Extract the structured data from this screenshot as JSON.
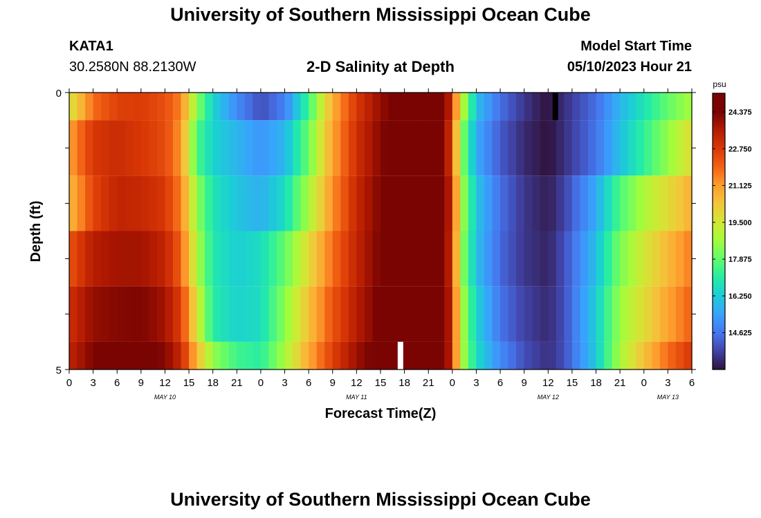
{
  "page": {
    "title_top": "University of Southern Mississippi Ocean Cube",
    "title_bottom": "University of Southern Mississippi Ocean Cube",
    "station_id": "KATA1",
    "coords": "30.2580N  88.2130W",
    "subtitle": "2-D Salinity at Depth",
    "model_start_label": "Model Start Time",
    "model_start_value": "05/10/2023 Hour 21"
  },
  "chart_data": {
    "type": "heatmap",
    "title": "2-D Salinity at Depth",
    "xlabel": "Forecast Time(Z)",
    "ylabel": "Depth (ft)",
    "y_ticks": [
      "0",
      "5"
    ],
    "x_tick_labels": [
      "0",
      "3",
      "6",
      "9",
      "12",
      "15",
      "18",
      "21",
      "0",
      "3",
      "6",
      "9",
      "12",
      "15",
      "18",
      "21",
      "0",
      "3",
      "6",
      "9",
      "12",
      "15",
      "18",
      "21",
      "0",
      "3",
      "6"
    ],
    "date_labels": [
      {
        "text": "MAY 10",
        "hour": 12
      },
      {
        "text": "MAY 11",
        "hour": 36
      },
      {
        "text": "MAY 12",
        "hour": 60
      },
      {
        "text": "MAY 13",
        "hour": 75
      }
    ],
    "xlim_hours": [
      0,
      78
    ],
    "depth_rows": 5,
    "colorbar": {
      "unit": "psu",
      "min": 13.0,
      "max": 25.2,
      "tick_labels": [
        "24.375",
        "22.750",
        "21.125",
        "19.500",
        "17.875",
        "16.250",
        "14.625"
      ],
      "tick_values": [
        24.375,
        22.75,
        21.125,
        19.5,
        17.875,
        16.25,
        14.625
      ]
    },
    "series_keypoints_hours": [
      0,
      3,
      6,
      9,
      12,
      14,
      16,
      18,
      21,
      24,
      27,
      30,
      33,
      36,
      39,
      42,
      45,
      47,
      48,
      49,
      51,
      54,
      57,
      60,
      62,
      66,
      69,
      72,
      75,
      78
    ],
    "salinity_by_row": [
      [
        19.5,
        21.8,
        22.6,
        22.7,
        22.3,
        21.5,
        18.4,
        16.4,
        15.0,
        14.0,
        14.8,
        17.4,
        20.8,
        22.8,
        24.0,
        24.8,
        24.9,
        24.6,
        22.7,
        19.6,
        16.0,
        14.5,
        13.6,
        13.0,
        13.5,
        14.5,
        15.8,
        16.8,
        17.9,
        18.8
      ],
      [
        21.0,
        22.8,
        23.1,
        22.8,
        22.4,
        21.2,
        17.6,
        16.4,
        15.8,
        15.2,
        15.8,
        18.0,
        21.0,
        23.0,
        24.2,
        24.8,
        24.9,
        24.5,
        22.2,
        18.7,
        15.6,
        14.2,
        13.4,
        13.0,
        13.5,
        14.6,
        16.0,
        17.2,
        18.5,
        19.8
      ],
      [
        20.5,
        22.5,
        23.3,
        23.2,
        22.8,
        21.5,
        18.5,
        16.8,
        16.1,
        15.7,
        16.6,
        18.8,
        21.3,
        23.2,
        24.3,
        24.9,
        24.9,
        24.6,
        22.8,
        19.1,
        16.1,
        14.5,
        13.6,
        13.2,
        13.8,
        15.6,
        17.6,
        18.9,
        19.8,
        20.8
      ],
      [
        22.2,
        23.5,
        23.8,
        23.8,
        23.3,
        22.0,
        18.9,
        16.9,
        16.3,
        16.6,
        17.9,
        19.8,
        21.8,
        23.3,
        24.4,
        24.9,
        24.9,
        24.6,
        22.6,
        18.8,
        16.0,
        14.4,
        13.6,
        13.3,
        14.0,
        16.0,
        18.2,
        19.5,
        20.6,
        21.6
      ],
      [
        23.0,
        24.0,
        24.2,
        24.3,
        23.8,
        22.6,
        19.6,
        17.0,
        16.4,
        16.6,
        18.4,
        20.4,
        22.2,
        23.5,
        24.5,
        25.0,
        24.9,
        24.6,
        22.9,
        19.2,
        16.4,
        14.6,
        13.8,
        13.4,
        14.0,
        16.3,
        18.6,
        19.8,
        21.0,
        22.0
      ],
      [
        23.3,
        24.3,
        24.6,
        24.7,
        24.2,
        23.2,
        20.6,
        18.5,
        17.4,
        17.1,
        18.8,
        20.9,
        22.6,
        23.9,
        24.7,
        25.0,
        24.9,
        24.6,
        22.9,
        19.2,
        16.6,
        15.0,
        14.0,
        13.5,
        14.0,
        16.2,
        18.8,
        20.4,
        21.8,
        22.8
      ]
    ],
    "markers": [
      {
        "hour": 60.9,
        "row": 0,
        "color": "#000000"
      },
      {
        "hour": 41.5,
        "row": 5,
        "color": "#ffffff"
      }
    ]
  }
}
